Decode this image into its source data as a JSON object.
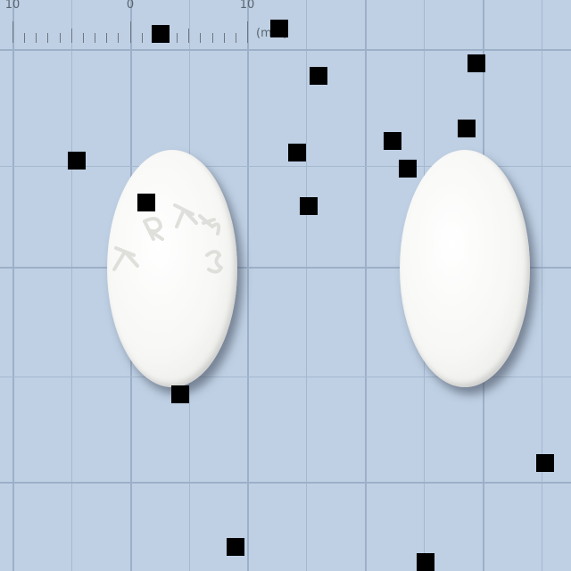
{
  "ruler": {
    "labels": [
      "10",
      "0",
      "10"
    ],
    "unit": "(mm)"
  },
  "tablets": {
    "left": {
      "imprint": "KRKA",
      "face": "imprinted"
    },
    "right": {
      "face": "plain"
    }
  },
  "colors": {
    "background": "#bfd0e4",
    "grid": "#a4b8cf",
    "tablet": "#f7f7f5",
    "marker": "#000000"
  }
}
